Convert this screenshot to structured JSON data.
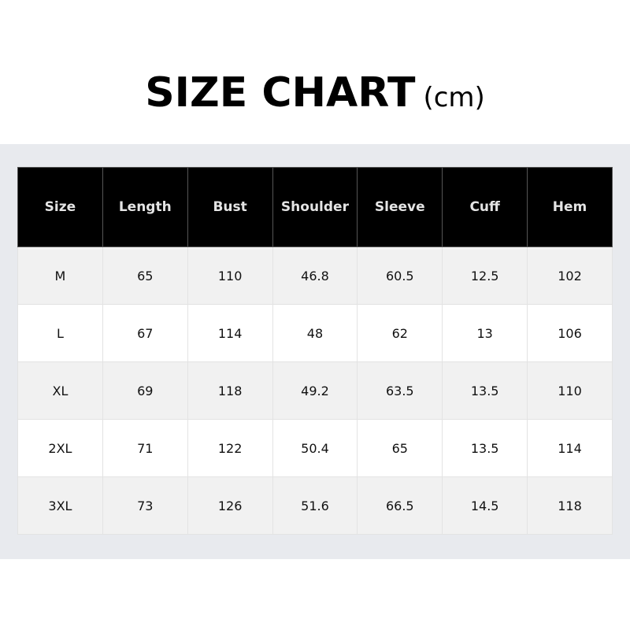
{
  "title": {
    "main": "SIZE CHART",
    "unit": "(cm)"
  },
  "table": {
    "headers": [
      "Size",
      "Length",
      "Bust",
      "Shoulder",
      "Sleeve",
      "Cuff",
      "Hem"
    ],
    "rows": [
      [
        "M",
        "65",
        "110",
        "46.8",
        "60.5",
        "12.5",
        "102"
      ],
      [
        "L",
        "67",
        "114",
        "48",
        "62",
        "13",
        "106"
      ],
      [
        "XL",
        "69",
        "118",
        "49.2",
        "63.5",
        "13.5",
        "110"
      ],
      [
        "2XL",
        "71",
        "122",
        "50.4",
        "65",
        "13.5",
        "114"
      ],
      [
        "3XL",
        "73",
        "126",
        "51.6",
        "66.5",
        "14.5",
        "118"
      ]
    ]
  }
}
